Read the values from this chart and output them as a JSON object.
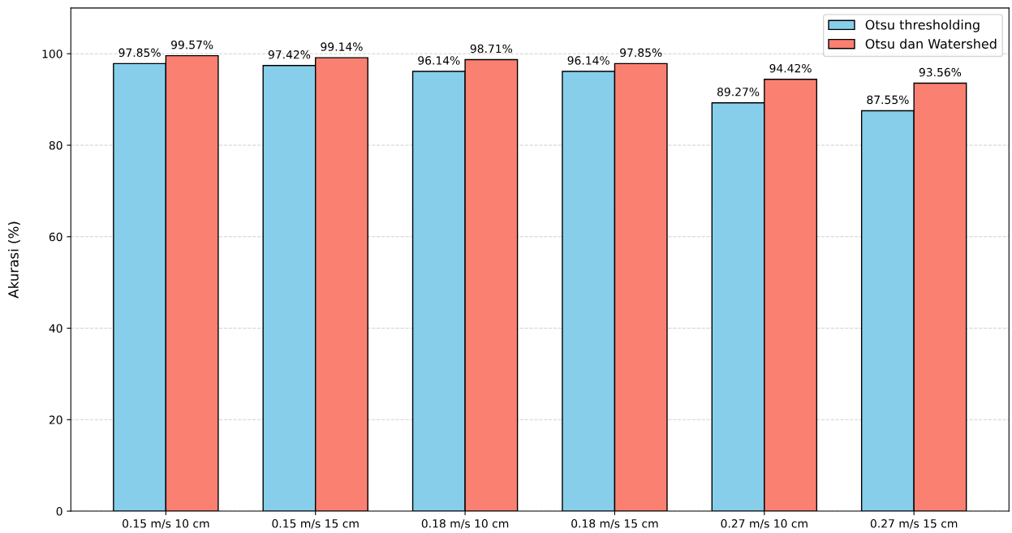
{
  "chart_data": {
    "type": "bar",
    "ylabel": "Akurasi (%)",
    "categories": [
      "0.15 m/s 10 cm",
      "0.15 m/s 15 cm",
      "0.18 m/s 10 cm",
      "0.18 m/s 15 cm",
      "0.27 m/s 10 cm",
      "0.27 m/s 15 cm"
    ],
    "series": [
      {
        "name": "Otsu thresholding",
        "color": "#87ceeb",
        "values": [
          97.85,
          97.42,
          96.14,
          96.14,
          89.27,
          87.55
        ],
        "value_labels": [
          "97.85%",
          "97.42%",
          "96.14%",
          "96.14%",
          "89.27%",
          "87.55%"
        ]
      },
      {
        "name": "Otsu dan Watershed",
        "color": "#fa8072",
        "values": [
          99.57,
          99.14,
          98.71,
          97.85,
          94.42,
          93.56
        ],
        "value_labels": [
          "99.57%",
          "99.14%",
          "98.71%",
          "97.85%",
          "94.42%",
          "93.56%"
        ]
      }
    ],
    "ylim": [
      0,
      110
    ],
    "yticks": [
      0,
      20,
      40,
      60,
      80,
      100
    ],
    "grid": "y",
    "legend": "top right"
  }
}
